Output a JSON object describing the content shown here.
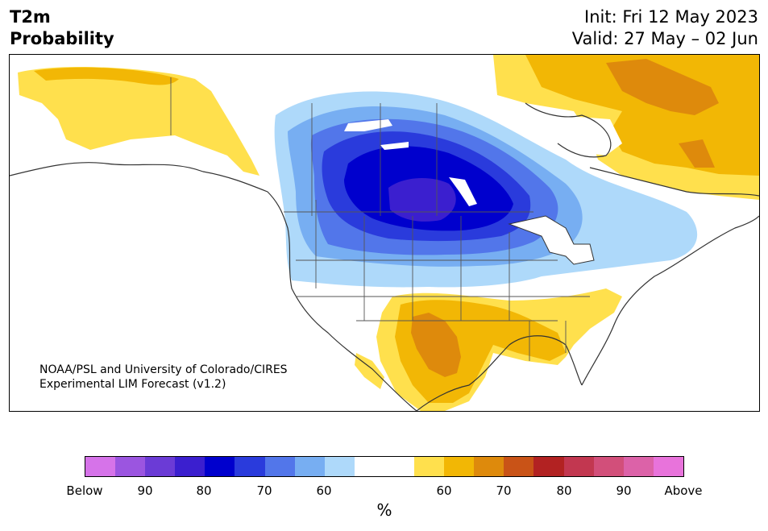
{
  "title": {
    "line1": "T2m",
    "line2": "Probability"
  },
  "init": "Init: Fri 12 May 2023",
  "valid": "Valid: 27 May – 02 Jun",
  "credit": {
    "line1": "NOAA/PSL and University of Colorado/CIRES",
    "line2": "Experimental LIM Forecast (v1.2)"
  },
  "colorbar": {
    "colors": [
      "#d673e9",
      "#9b55e0",
      "#6b3bd6",
      "#3b1fcf",
      "#0000cd",
      "#2a3bdc",
      "#5276ea",
      "#77aef2",
      "#aed9fa",
      "#ffffff",
      "#ffffff",
      "#ffe04d",
      "#f2b705",
      "#de8a0c",
      "#c95317",
      "#b22222",
      "#c23750",
      "#d24f7a",
      "#dc62a8",
      "#e873db"
    ],
    "ticks": [
      "Below",
      "90",
      "80",
      "70",
      "60",
      "60",
      "70",
      "80",
      "90",
      "Above"
    ],
    "units": "%"
  },
  "map_colors": {
    "blue1": "#aed9fa",
    "blue2": "#77aef2",
    "blue3": "#5276ea",
    "blue4": "#2a3bdc",
    "blue5": "#0000cd",
    "blue6": "#3b1fcf",
    "orange1": "#ffe04d",
    "orange2": "#f2b705",
    "orange3": "#de8a0c",
    "land_line": "#333333"
  }
}
